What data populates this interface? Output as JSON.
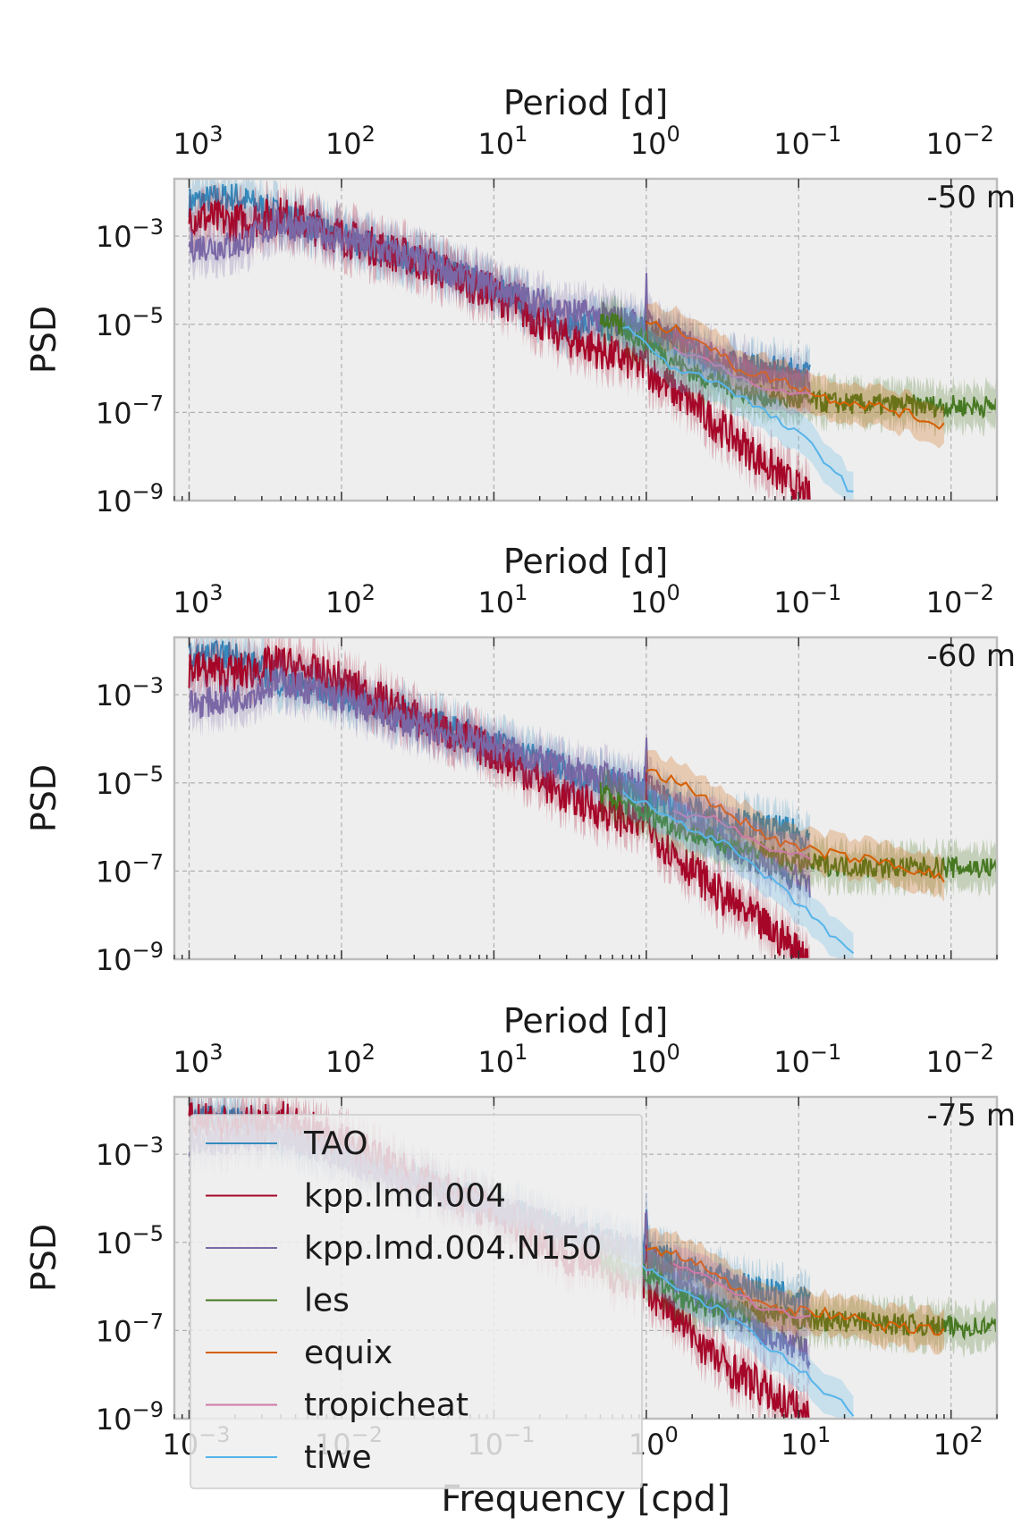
{
  "chart_data": {
    "type": "line",
    "xlabel": "Frequency [cpd]",
    "secondary_xlabel": "Period [d]",
    "ylabel": "PSD",
    "xscale": "log",
    "yscale": "log",
    "xlim": [
      0.0008,
      200
    ],
    "ylim": [
      1e-09,
      0.02
    ],
    "grid": true,
    "legend_position": "lower-left of bottom panel",
    "x_tick_labels": [
      "10-3",
      "10-2",
      "10-1",
      "100",
      "101",
      "102"
    ],
    "y_tick_labels": [
      "10-9",
      "10-7",
      "10-5",
      "10-3"
    ],
    "top_tick_labels": [
      "103",
      "102",
      "101",
      "100",
      "10-1",
      "10-2"
    ],
    "legend": [
      "TAO",
      "kpp.lmd.004",
      "kpp.lmd.004.N150",
      "les",
      "equix",
      "tropicheat",
      "tiwe"
    ],
    "colors": {
      "TAO": "#348abd",
      "kpp.lmd.004": "#a60628",
      "kpp.lmd.004.N150": "#7a68a6",
      "les": "#467821",
      "equix": "#d55e00",
      "tropicheat": "#cc79a7",
      "tiwe": "#56b4e9"
    },
    "panels": [
      {
        "depth_label": "-50 m",
        "series": [
          {
            "name": "TAO",
            "x": [
              0.001,
              0.002,
              0.004,
              0.01,
              0.03,
              0.1,
              0.3,
              1,
              3,
              12
            ],
            "y": [
              0.006,
              0.008,
              0.003,
              0.001,
              0.0003,
              7e-05,
              1e-05,
              8e-06,
              1.2e-06,
              7e-07
            ]
          },
          {
            "name": "kpp.lmd.004",
            "x": [
              0.001,
              0.002,
              0.004,
              0.01,
              0.03,
              0.1,
              0.3,
              1,
              3,
              12
            ],
            "y": [
              0.003,
              0.002,
              0.003,
              0.001,
              0.0003,
              5e-05,
              5e-06,
              1e-06,
              5e-08,
              1e-09
            ]
          },
          {
            "name": "kpp.lmd.004.N150",
            "x": [
              0.001,
              0.002,
              0.004,
              0.01,
              0.03,
              0.1,
              0.3,
              1,
              3,
              12
            ],
            "y": [
              0.0006,
              0.0006,
              0.002,
              0.0009,
              0.0003,
              7e-05,
              2e-05,
              1e-05,
              1.5e-06,
              4e-07
            ]
          },
          {
            "name": "les",
            "x": [
              0.5,
              1,
              2,
              5,
              10,
              30,
              100,
              200
            ],
            "y": [
              1.5e-05,
              4e-06,
              8e-07,
              2.5e-07,
              1.8e-07,
              1.5e-07,
              1.4e-07,
              1.4e-07
            ]
          },
          {
            "name": "equix",
            "x": [
              1,
              2,
              4,
              8,
              15,
              40,
              90
            ],
            "y": [
              1e-05,
              6e-06,
              1e-06,
              5e-07,
              2.2e-07,
              1.2e-07,
              5e-08
            ]
          },
          {
            "name": "tropicheat",
            "x": [
              1.5,
              3,
              6,
              12
            ],
            "y": [
              3e-06,
              1.2e-06,
              3e-07,
              2.5e-07
            ]
          },
          {
            "name": "tiwe",
            "x": [
              0.7,
              1.5,
              3,
              6,
              12,
              25
            ],
            "y": [
              1e-05,
              1e-06,
              5e-07,
              1e-07,
              2e-08,
              1e-09
            ]
          }
        ]
      },
      {
        "depth_label": "-60 m",
        "series": [
          {
            "name": "TAO",
            "x": [
              0.001,
              0.002,
              0.004,
              0.01,
              0.03,
              0.1,
              0.3,
              1,
              3,
              12
            ],
            "y": [
              0.007,
              0.008,
              0.002,
              0.001,
              0.0003,
              8e-05,
              2e-05,
              6e-06,
              1.5e-06,
              6e-07
            ]
          },
          {
            "name": "kpp.lmd.004",
            "x": [
              0.001,
              0.002,
              0.004,
              0.01,
              0.03,
              0.1,
              0.3,
              1,
              3,
              12
            ],
            "y": [
              0.004,
              0.003,
              0.005,
              0.002,
              0.0003,
              5e-05,
              5e-06,
              1e-06,
              3e-08,
              1e-09
            ]
          },
          {
            "name": "kpp.lmd.004.N150",
            "x": [
              0.001,
              0.002,
              0.004,
              0.01,
              0.03,
              0.1,
              0.3,
              1,
              3,
              12
            ],
            "y": [
              0.0006,
              0.0008,
              0.002,
              0.0008,
              0.0002,
              7e-05,
              2e-05,
              8e-06,
              5e-07,
              5e-08
            ]
          },
          {
            "name": "les",
            "x": [
              0.5,
              1,
              2,
              5,
              10,
              30,
              100,
              200
            ],
            "y": [
              6e-06,
              2e-06,
              7e-07,
              3e-07,
              1.5e-07,
              1.2e-07,
              1.2e-07,
              1.2e-07
            ]
          },
          {
            "name": "equix",
            "x": [
              1,
              2,
              4,
              8,
              15,
              40,
              90
            ],
            "y": [
              2e-05,
              7e-06,
              1.5e-06,
              4e-07,
              2.5e-07,
              1.5e-07,
              7e-08
            ]
          },
          {
            "name": "tropicheat",
            "x": [
              1.5,
              3,
              6,
              12
            ],
            "y": [
              2e-06,
              1.5e-06,
              3e-07,
              2e-07
            ]
          },
          {
            "name": "tiwe",
            "x": [
              0.7,
              1.5,
              3,
              6,
              12,
              25
            ],
            "y": [
              6e-06,
              1.5e-06,
              5e-07,
              8e-08,
              1e-08,
              1e-09
            ]
          }
        ]
      },
      {
        "depth_label": "-75 m",
        "series": [
          {
            "name": "TAO",
            "x": [
              0.001,
              0.002,
              0.004,
              0.01,
              0.03,
              0.1,
              0.3,
              1,
              3,
              12
            ],
            "y": [
              0.006,
              0.006,
              0.002,
              0.001,
              0.0003,
              7e-05,
              2e-05,
              6e-06,
              1.5e-06,
              4e-07
            ]
          },
          {
            "name": "kpp.lmd.004",
            "x": [
              0.001,
              0.002,
              0.004,
              0.01,
              0.03,
              0.1,
              0.3,
              1,
              3,
              12
            ],
            "y": [
              0.006,
              0.004,
              0.006,
              0.002,
              0.0003,
              5e-05,
              5e-06,
              1e-06,
              2e-08,
              1e-09
            ]
          },
          {
            "name": "kpp.lmd.004.N150",
            "x": [
              0.001,
              0.002,
              0.004,
              0.01,
              0.03,
              0.1,
              0.3,
              1,
              3,
              12
            ],
            "y": [
              0.002,
              0.002,
              0.003,
              0.0008,
              0.0002,
              6e-05,
              2e-05,
              5e-06,
              3e-07,
              3e-08
            ]
          },
          {
            "name": "les",
            "x": [
              0.5,
              1,
              2,
              5,
              10,
              30,
              100,
              200
            ],
            "y": [
              4e-06,
              2e-06,
              4e-07,
              2.5e-07,
              1.8e-07,
              1.5e-07,
              1.2e-07,
              1.2e-07
            ]
          },
          {
            "name": "equix",
            "x": [
              1,
              2,
              4,
              8,
              15,
              40,
              90
            ],
            "y": [
              8e-06,
              4e-06,
              8e-07,
              3e-07,
              2.5e-07,
              1.2e-07,
              1e-07
            ]
          },
          {
            "name": "tropicheat",
            "x": [
              1.5,
              3,
              6,
              12
            ],
            "y": [
              3e-06,
              1.2e-06,
              3e-07,
              2e-07
            ]
          },
          {
            "name": "tiwe",
            "x": [
              0.7,
              1.5,
              3,
              6,
              12,
              25
            ],
            "y": [
              5e-06,
              1e-06,
              3e-07,
              5e-08,
              8e-09,
              1e-09
            ]
          }
        ]
      }
    ]
  }
}
